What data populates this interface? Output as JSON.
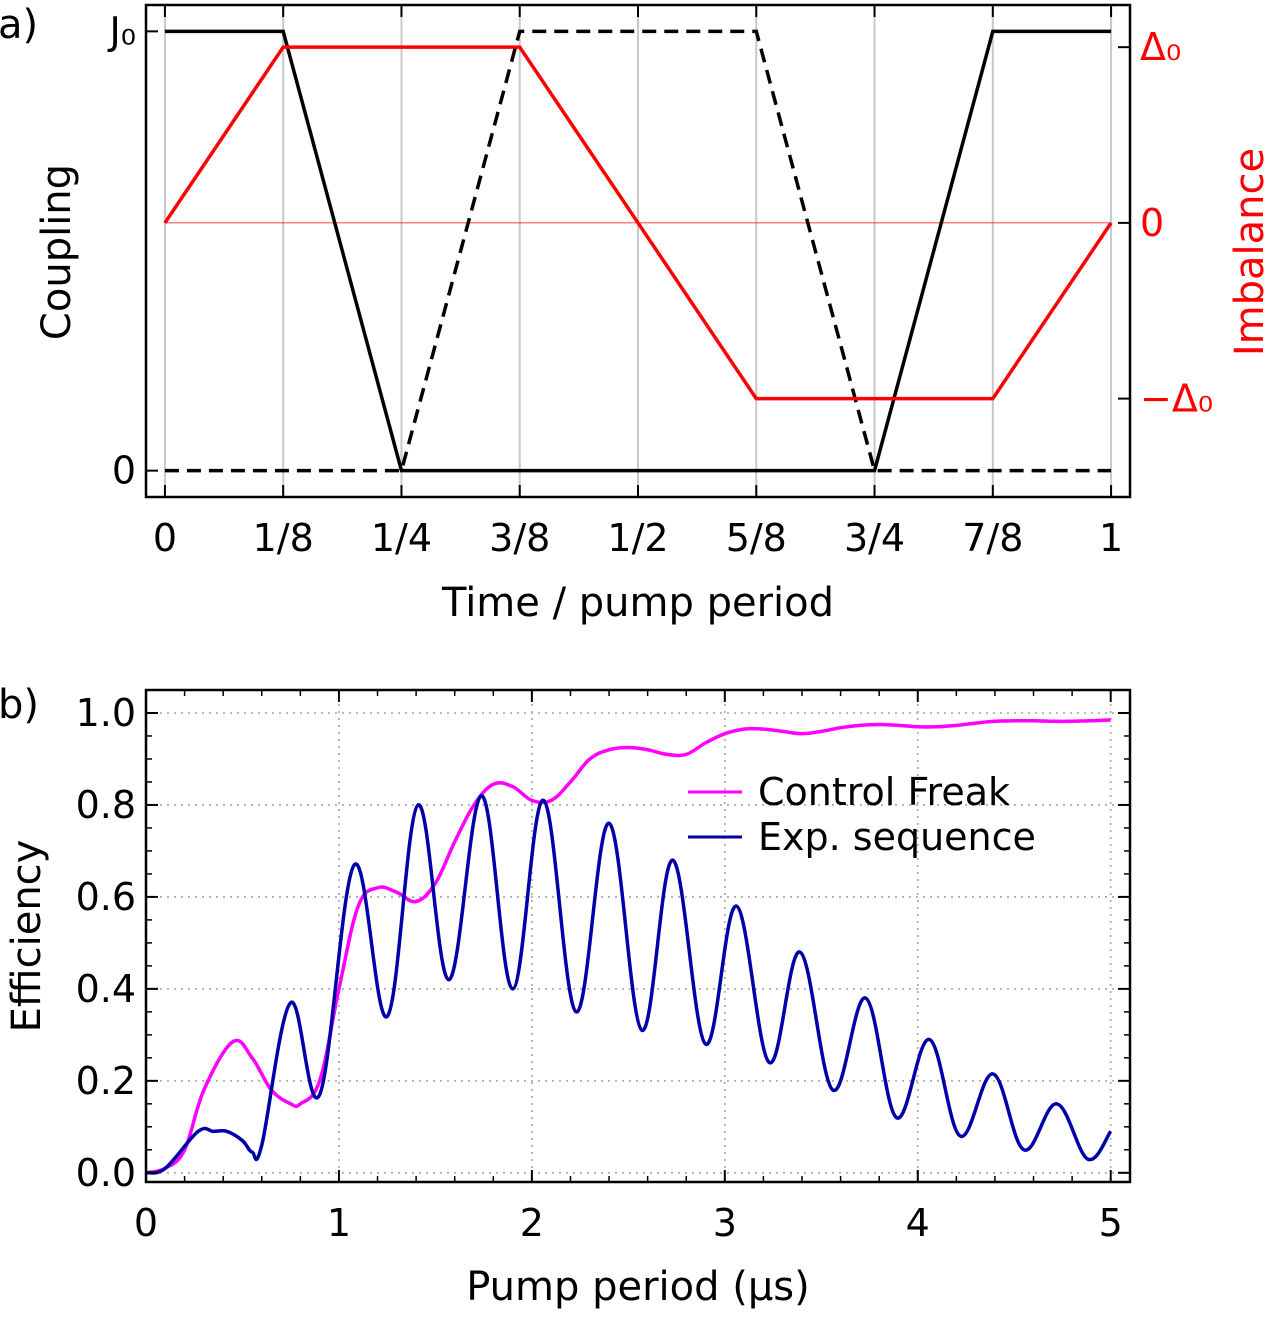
{
  "panel_labels": [
    "a)",
    "b)"
  ],
  "colors": {
    "black": "#000000",
    "red": "#ff0000",
    "magenta": "#ff00ff",
    "navy": "#0000a8",
    "vgrid": "#c8c8c8",
    "dotgrid": "#b0b0b0"
  },
  "chart_data": [
    {
      "type": "line",
      "panel": "a)",
      "xlabel": "Time / pump period",
      "ylabel_left": "Coupling",
      "ylabel_right": "Imbalance",
      "x_tick_labels": [
        "0",
        "1/8",
        "1/4",
        "3/8",
        "1/2",
        "5/8",
        "3/4",
        "7/8",
        "1"
      ],
      "x_tick_values": [
        0,
        0.125,
        0.25,
        0.375,
        0.5,
        0.625,
        0.75,
        0.875,
        1
      ],
      "xlim": [
        -0.02,
        1.02
      ],
      "left_axis": {
        "ylim": [
          -0.06,
          1.06
        ],
        "tick_values": [
          0,
          1
        ],
        "tick_labels": [
          "0",
          "J₀"
        ]
      },
      "right_axis": {
        "ylim": [
          -1.56,
          1.24
        ],
        "tick_values": [
          1,
          0,
          -1
        ],
        "tick_labels": [
          "Δ₀",
          "0",
          "−Δ₀"
        ]
      },
      "grid": "vertical",
      "series": [
        {
          "axis": "left",
          "style": "solid",
          "color": "#000000",
          "x": [
            0,
            0.125,
            0.25,
            0.75,
            0.875,
            1
          ],
          "y": [
            1,
            1,
            0,
            0,
            1,
            1
          ]
        },
        {
          "axis": "left",
          "style": "dashed",
          "color": "#000000",
          "x": [
            0,
            0.25,
            0.375,
            0.625,
            0.75,
            1
          ],
          "y": [
            0,
            0,
            1,
            1,
            0,
            0
          ]
        },
        {
          "axis": "right",
          "style": "solid",
          "color": "#ff0000",
          "x": [
            0,
            0.125,
            0.375,
            0.625,
            0.875,
            1
          ],
          "y": [
            0,
            1,
            1,
            -1,
            -1,
            0
          ]
        }
      ],
      "reference_line": {
        "axis": "right",
        "y": 0,
        "color": "#ff0000"
      }
    },
    {
      "type": "line",
      "panel": "b)",
      "xlabel": "Pump period (μs)",
      "ylabel": "Efficiency",
      "xlim": [
        0,
        5.1
      ],
      "ylim": [
        -0.02,
        1.05
      ],
      "x_ticks": [
        0,
        1,
        2,
        3,
        4,
        5
      ],
      "x_tick_labels": [
        "0",
        "1",
        "2",
        "3",
        "4",
        "5"
      ],
      "y_ticks": [
        0,
        0.2,
        0.4,
        0.6,
        0.8,
        1.0
      ],
      "y_tick_labels": [
        "0.0",
        "0.2",
        "0.4",
        "0.6",
        "0.8",
        "1.0"
      ],
      "grid": "dotted",
      "legend_position": "upper-right",
      "series": [
        {
          "name": "Control Freak",
          "color": "#ff00ff",
          "x": [
            0,
            0.1,
            0.2,
            0.3,
            0.45,
            0.55,
            0.65,
            0.75,
            0.8,
            0.9,
            1.0,
            1.1,
            1.2,
            1.3,
            1.4,
            1.5,
            1.6,
            1.7,
            1.8,
            1.9,
            2.0,
            2.1,
            2.2,
            2.3,
            2.4,
            2.5,
            2.6,
            2.7,
            2.8,
            2.9,
            3.0,
            3.1,
            3.2,
            3.3,
            3.4,
            3.5,
            3.6,
            3.7,
            3.8,
            3.9,
            4.0,
            4.1,
            4.2,
            4.3,
            4.4,
            4.5,
            4.6,
            4.7,
            4.8,
            4.9,
            5.0
          ],
          "y": [
            0.0,
            0.01,
            0.05,
            0.18,
            0.285,
            0.25,
            0.18,
            0.15,
            0.15,
            0.2,
            0.4,
            0.58,
            0.62,
            0.61,
            0.59,
            0.63,
            0.72,
            0.8,
            0.845,
            0.84,
            0.81,
            0.81,
            0.85,
            0.9,
            0.92,
            0.925,
            0.92,
            0.91,
            0.91,
            0.935,
            0.955,
            0.965,
            0.965,
            0.96,
            0.955,
            0.96,
            0.968,
            0.973,
            0.975,
            0.973,
            0.97,
            0.97,
            0.973,
            0.978,
            0.982,
            0.983,
            0.983,
            0.982,
            0.982,
            0.983,
            0.985
          ]
        },
        {
          "name": "Exp. sequence",
          "color": "#0000a8",
          "x": [
            0,
            0.1,
            0.27,
            0.35,
            0.42,
            0.5,
            0.55,
            0.6,
            0.75,
            0.9,
            1.08,
            1.25,
            1.41,
            1.57,
            1.74,
            1.9,
            2.06,
            2.23,
            2.4,
            2.57,
            2.73,
            2.9,
            3.06,
            3.23,
            3.39,
            3.56,
            3.73,
            3.89,
            4.06,
            4.22,
            4.39,
            4.55,
            4.72,
            4.88,
            5.0
          ],
          "y": [
            0.0,
            0.01,
            0.09,
            0.09,
            0.09,
            0.07,
            0.045,
            0.06,
            0.37,
            0.17,
            0.67,
            0.34,
            0.8,
            0.42,
            0.82,
            0.4,
            0.81,
            0.35,
            0.76,
            0.31,
            0.68,
            0.28,
            0.58,
            0.24,
            0.48,
            0.18,
            0.38,
            0.12,
            0.29,
            0.08,
            0.215,
            0.05,
            0.15,
            0.03,
            0.09
          ]
        }
      ]
    }
  ]
}
